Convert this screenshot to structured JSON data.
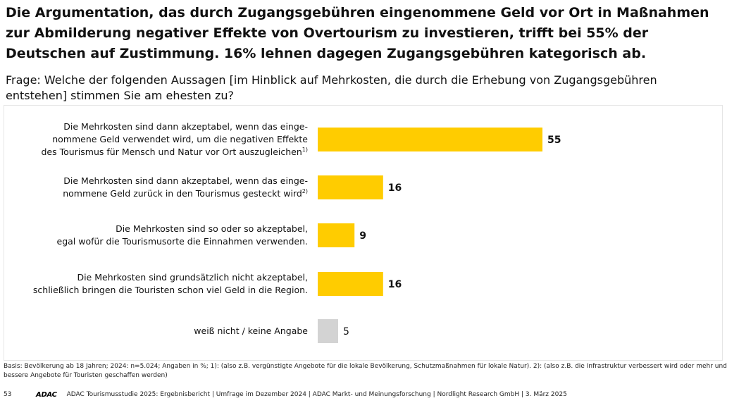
{
  "headline": "Die Argumentation, das durch Zugangsgebühren eingenommene Geld vor Ort in Maßnahmen zur Abmilderung negativer Effekte von Overtourism zu investieren, trifft bei 55% der Deutschen auf Zustimmung. 16% lehnen dagegen Zugangsgebühren kategorisch ab.",
  "question": "Frage: Welche der folgenden Aussagen [im Hinblick auf Mehrkosten, die durch die Erhebung von Zugangsgebühren entstehen] stimmen Sie am ehesten zu?",
  "chart_data": {
    "type": "bar",
    "orientation": "horizontal",
    "categories": [
      {
        "lines": [
          "Die Mehrkosten sind dann akzeptabel, wenn das einge-",
          "nommene Geld verwendet wird, um die negativen Effekte",
          "des Tourismus  für Mensch und Natur vor Ort auszugleichen"
        ],
        "note": "1)"
      },
      {
        "lines": [
          "Die Mehrkosten sind dann akzeptabel, wenn das einge-",
          "nommene Geld zurück in den Tourismus gesteckt wird"
        ],
        "note": "2)"
      },
      {
        "lines": [
          "Die Mehrkosten sind so oder so akzeptabel,",
          "egal wofür die Tourismusorte die Einnahmen verwenden."
        ],
        "note": ""
      },
      {
        "lines": [
          "Die Mehrkosten sind grundsätzlich nicht akzeptabel,",
          "schließlich bringen die Touristen schon viel Geld in die Region."
        ],
        "note": ""
      },
      {
        "lines": [
          "weiß nicht / keine Angabe"
        ],
        "note": ""
      }
    ],
    "values": [
      55,
      16,
      9,
      16,
      5
    ],
    "colors": [
      "#FFCC00",
      "#FFCC00",
      "#FFCC00",
      "#FFCC00",
      "#D3D3D3"
    ],
    "unit": "%",
    "xlim": [
      0,
      100
    ],
    "grid": false,
    "legend": "none"
  },
  "footnote": "Basis: Bevölkerung ab 18 Jahren; 2024: n=5.024; Angaben in %; 1): (also z.B. vergünstigte Angebote für die lokale Bevölkerung, Schutzmaßnahmen für lokale Natur). 2): (also z.B. die Infrastruktur verbessert wird oder mehr und bessere Angebote für Touristen geschaffen werden)",
  "footer": {
    "page_number": "53",
    "logo": "ADAC",
    "text": "ADAC Tourismusstudie 2025: Ergebnisbericht | Umfrage im Dezember 2024 | ADAC Markt- und Meinungsforschung | Nordlight Research GmbH | 3. März 2025"
  }
}
